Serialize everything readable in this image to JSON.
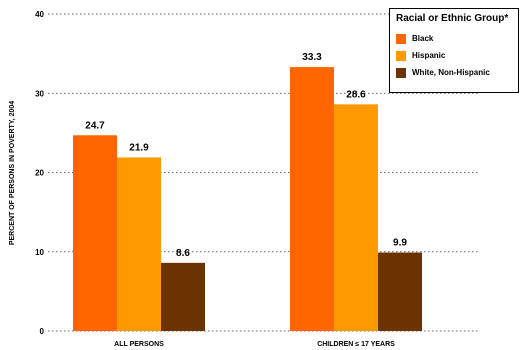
{
  "chart_data": {
    "type": "bar",
    "categories": [
      "ALL PERSONS",
      "CHILDREN ≤ 17 YEARS"
    ],
    "series": [
      {
        "name": "Black",
        "values": [
          24.7,
          33.3
        ],
        "color": "#FF6600"
      },
      {
        "name": "Hispanic",
        "values": [
          21.9,
          28.6
        ],
        "color": "#FF9900"
      },
      {
        "name": "White, Non-Hispanic",
        "values": [
          8.6,
          9.9
        ],
        "color": "#6B3300"
      }
    ],
    "value_labels": [
      [
        "24.7",
        "33.3"
      ],
      [
        "21.9",
        "28.6"
      ],
      [
        "8.6",
        "9.9"
      ]
    ],
    "title": "",
    "xlabel": "",
    "ylabel": "PERCENT OF PERSONS IN POVERTY, 2004",
    "ylim": [
      0,
      40
    ],
    "yticks": [
      0,
      10,
      20,
      30,
      40
    ],
    "grid": "dotted horizontal",
    "legend": {
      "title": "Racial or Ethnic Group*",
      "placement": "top-right"
    }
  }
}
